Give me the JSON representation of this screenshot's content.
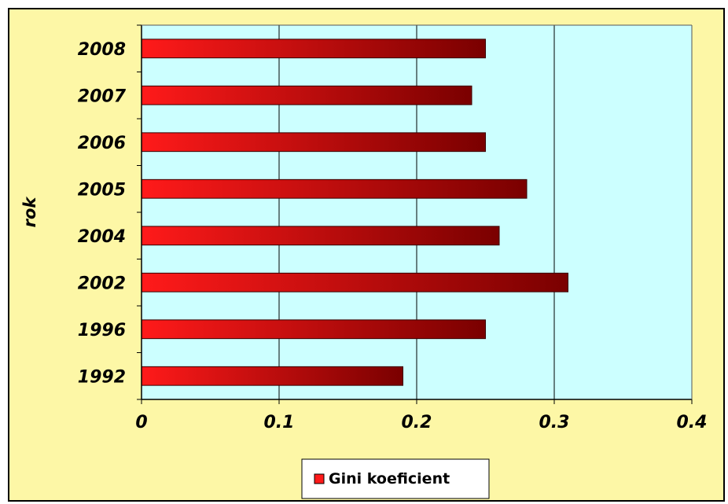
{
  "chart_data": {
    "type": "bar",
    "orientation": "horizontal",
    "categories": [
      "2008",
      "2007",
      "2006",
      "2005",
      "2004",
      "2002",
      "1996",
      "1992"
    ],
    "series": [
      {
        "name": "Gini koeficient",
        "values": [
          0.25,
          0.24,
          0.25,
          0.28,
          0.26,
          0.31,
          0.25,
          0.19
        ]
      }
    ],
    "xlim": [
      0,
      0.4
    ],
    "xticks": [
      "0",
      "0.1",
      "0.2",
      "0.3",
      "0.4"
    ],
    "ylabel": "rok",
    "grid": "vertical",
    "legend": "bottom-center"
  },
  "colors": {
    "page_background": "#fdf7a6",
    "plot_background": "#ccffff",
    "bar_light": "#ff1a1a",
    "bar_dark": "#7a0000",
    "gridline": "#000000"
  }
}
